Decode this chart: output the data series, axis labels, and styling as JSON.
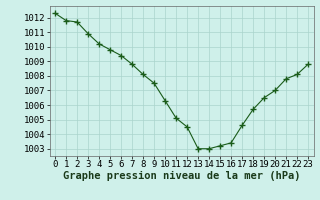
{
  "x": [
    0,
    1,
    2,
    3,
    4,
    5,
    6,
    7,
    8,
    9,
    10,
    11,
    12,
    13,
    14,
    15,
    16,
    17,
    18,
    19,
    20,
    21,
    22,
    23
  ],
  "y": [
    1012.3,
    1011.8,
    1011.7,
    1010.9,
    1010.2,
    1009.8,
    1009.4,
    1008.8,
    1008.1,
    1007.5,
    1006.3,
    1005.1,
    1004.5,
    1003.0,
    1003.0,
    1003.2,
    1003.4,
    1004.6,
    1005.7,
    1006.5,
    1007.0,
    1007.8,
    1008.1,
    1008.8
  ],
  "line_color": "#1a5c1a",
  "marker": "+",
  "marker_size": 4,
  "bg_color": "#cff0ea",
  "grid_color": "#aad4cc",
  "xlabel": "Graphe pression niveau de la mer (hPa)",
  "xlabel_fontsize": 7.5,
  "tick_fontsize": 6.5,
  "ylim": [
    1002.5,
    1012.8
  ],
  "xlim": [
    -0.5,
    23.5
  ],
  "yticks": [
    1003,
    1004,
    1005,
    1006,
    1007,
    1008,
    1009,
    1010,
    1011,
    1012
  ],
  "xticks": [
    0,
    1,
    2,
    3,
    4,
    5,
    6,
    7,
    8,
    9,
    10,
    11,
    12,
    13,
    14,
    15,
    16,
    17,
    18,
    19,
    20,
    21,
    22,
    23
  ],
  "fig_width": 3.2,
  "fig_height": 2.0,
  "dpi": 100
}
